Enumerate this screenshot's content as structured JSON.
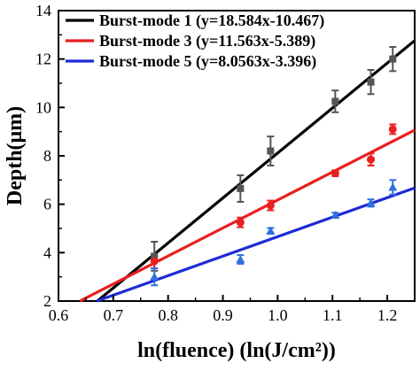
{
  "chart_data": {
    "type": "scatter",
    "xlabel": "ln(fluence) (ln(J/cm²))",
    "ylabel": "Depth(μm)",
    "xlim": [
      0.6,
      1.25
    ],
    "ylim": [
      2,
      14
    ],
    "x_ticks": [
      "0.6",
      "0.7",
      "0.8",
      "0.9",
      "1.0",
      "1.1",
      "1.2"
    ],
    "y_ticks": [
      "2",
      "4",
      "6",
      "8",
      "10",
      "12",
      "14"
    ],
    "legend_position": "top-left",
    "grid": false,
    "series": [
      {
        "name": "Burst-mode 1 (y=18.584x-10.467)",
        "color": "#000000",
        "marker": "square",
        "marker_color": "#555555",
        "fit": {
          "slope": 18.584,
          "intercept": -10.467
        },
        "points": [
          {
            "x": 0.775,
            "y": 3.85,
            "err": 0.6
          },
          {
            "x": 0.932,
            "y": 6.65,
            "err": 0.55
          },
          {
            "x": 0.987,
            "y": 8.2,
            "err": 0.6
          },
          {
            "x": 1.105,
            "y": 10.25,
            "err": 0.45
          },
          {
            "x": 1.17,
            "y": 11.05,
            "err": 0.5
          },
          {
            "x": 1.21,
            "y": 12.0,
            "err": 0.5
          }
        ]
      },
      {
        "name": "Burst-mode 3 (y=11.563x-5.389)",
        "color": "#e8201f",
        "marker": "circle",
        "marker_color": "#e8201f",
        "fit": {
          "slope": 11.563,
          "intercept": -5.389
        },
        "points": [
          {
            "x": 0.775,
            "y": 3.65,
            "err": 0.3
          },
          {
            "x": 0.932,
            "y": 5.25,
            "err": 0.2
          },
          {
            "x": 0.987,
            "y": 5.95,
            "err": 0.2
          },
          {
            "x": 1.105,
            "y": 7.28,
            "err": 0.12
          },
          {
            "x": 1.17,
            "y": 7.85,
            "err": 0.25
          },
          {
            "x": 1.21,
            "y": 9.1,
            "err": 0.2
          }
        ]
      },
      {
        "name": "Burst-mode 5 (y=8.0563x-3.396)",
        "color": "#1f2ad8",
        "marker": "triangle",
        "marker_color": "#2f6fe0",
        "fit": {
          "slope": 8.0563,
          "intercept": -3.396
        },
        "points": [
          {
            "x": 0.775,
            "y": 3.0,
            "err": 0.35
          },
          {
            "x": 0.932,
            "y": 3.72,
            "err": 0.18
          },
          {
            "x": 0.987,
            "y": 4.9,
            "err": 0.12
          },
          {
            "x": 1.105,
            "y": 5.55,
            "err": 0.1
          },
          {
            "x": 1.17,
            "y": 6.05,
            "err": 0.15
          },
          {
            "x": 1.21,
            "y": 6.7,
            "err": 0.3
          }
        ]
      }
    ]
  }
}
